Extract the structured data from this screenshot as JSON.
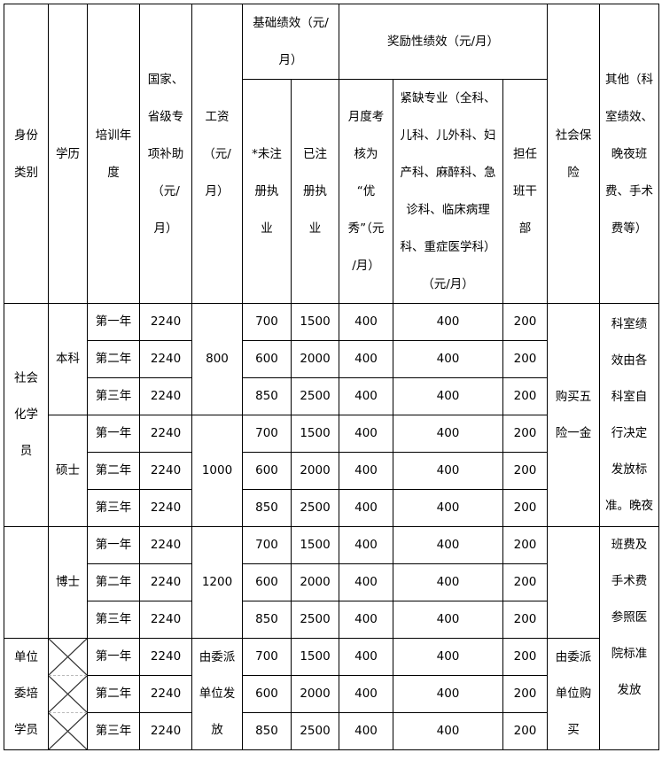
{
  "headers": {
    "identity": "身份\n类别",
    "degree": "学历",
    "year": "培训年\n度",
    "subsidy": "国家、\n省级专\n项补助\n（元/\n月）",
    "salary": "工资\n（元/\n月）",
    "basic": "基础绩效（元/\n月）",
    "unregistered": "*未注\n册执\n业",
    "registered": "已注\n册执\n业",
    "incentive": "奖励性绩效（元/月）",
    "excellent": "月度考\n核为\n“优\n秀”（元\n/月）",
    "shortage": "紧缺专业（全科、\n儿科、儿外科、妇\n产科、麻醉科、急\n诊科、临床病理\n科、重症医学科）\n（元/月）",
    "cadre": "担任\n班干\n部",
    "insurance": "社会保\n险",
    "other": "其他（科\n室绩效、\n晚夜班\n费、手术\n费等）"
  },
  "groups": {
    "identity_social": "社会\n化学\n员",
    "identity_unit": "单位\n委培\n学员",
    "degree_bachelor": "本科",
    "degree_master": "硕士",
    "degree_doctor": "博士",
    "salary_bachelor": "800",
    "salary_master": "1000",
    "salary_doctor": "1200",
    "salary_unit": "由委派\n单位发\n放",
    "insurance_social": "购买五\n险一金",
    "insurance_unit": "由委派\n单位购\n买",
    "other_part1": "科室绩\n效由各\n科室自\n行决定\n发放标\n准。晚夜",
    "other_part2": "班费及\n手术费\n参照医\n院标准\n发放"
  },
  "rows": [
    {
      "year": "第一年",
      "subsidy": "2240",
      "unreg": "700",
      "reg": "1500",
      "excellent": "400",
      "shortage": "400",
      "cadre": "200"
    },
    {
      "year": "第二年",
      "subsidy": "2240",
      "unreg": "600",
      "reg": "2000",
      "excellent": "400",
      "shortage": "400",
      "cadre": "200"
    },
    {
      "year": "第三年",
      "subsidy": "2240",
      "unreg": "850",
      "reg": "2500",
      "excellent": "400",
      "shortage": "400",
      "cadre": "200"
    },
    {
      "year": "第一年",
      "subsidy": "2240",
      "unreg": "700",
      "reg": "1500",
      "excellent": "400",
      "shortage": "400",
      "cadre": "200"
    },
    {
      "year": "第二年",
      "subsidy": "2240",
      "unreg": "600",
      "reg": "2000",
      "excellent": "400",
      "shortage": "400",
      "cadre": "200"
    },
    {
      "year": "第三年",
      "subsidy": "2240",
      "unreg": "850",
      "reg": "2500",
      "excellent": "400",
      "shortage": "400",
      "cadre": "200"
    },
    {
      "year": "第一年",
      "subsidy": "2240",
      "unreg": "700",
      "reg": "1500",
      "excellent": "400",
      "shortage": "400",
      "cadre": "200"
    },
    {
      "year": "第二年",
      "subsidy": "2240",
      "unreg": "600",
      "reg": "2000",
      "excellent": "400",
      "shortage": "400",
      "cadre": "200"
    },
    {
      "year": "第三年",
      "subsidy": "2240",
      "unreg": "850",
      "reg": "2500",
      "excellent": "400",
      "shortage": "400",
      "cadre": "200"
    },
    {
      "year": "第一年",
      "subsidy": "2240",
      "unreg": "700",
      "reg": "1500",
      "excellent": "400",
      "shortage": "400",
      "cadre": "200"
    },
    {
      "year": "第二年",
      "subsidy": "2240",
      "unreg": "600",
      "reg": "2000",
      "excellent": "400",
      "shortage": "400",
      "cadre": "200"
    },
    {
      "year": "第三年",
      "subsidy": "2240",
      "unreg": "850",
      "reg": "2500",
      "excellent": "400",
      "shortage": "400",
      "cadre": "200"
    }
  ]
}
